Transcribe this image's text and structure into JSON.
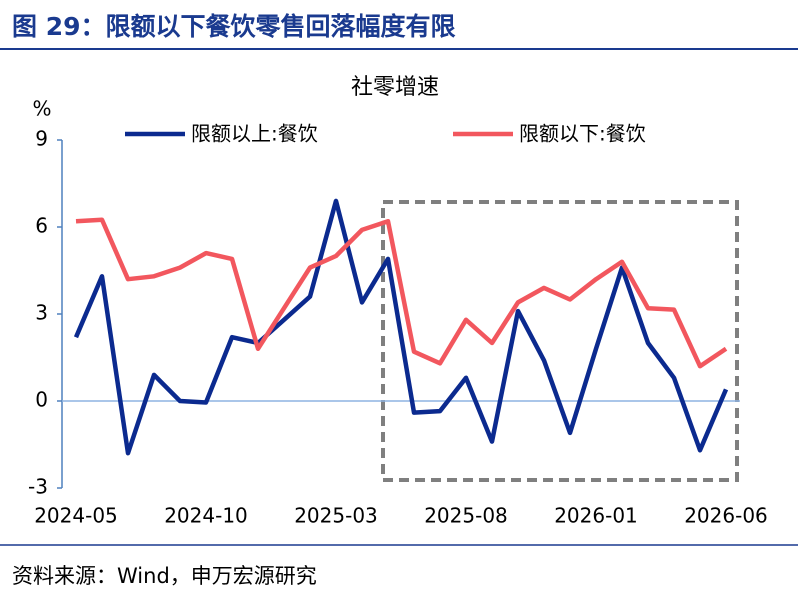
{
  "header": {
    "title": "图 29：限额以下餐饮零售回落幅度有限"
  },
  "chart_data": {
    "type": "line",
    "title": "社零增速",
    "y_label": "%",
    "categories": [
      "2024-05",
      null,
      null,
      null,
      null,
      "2024-10",
      null,
      null,
      null,
      null,
      "2025-03",
      null,
      null,
      null,
      null,
      "2025-08",
      null,
      null,
      null,
      null,
      "2026-01",
      null,
      null,
      null,
      null,
      "2026-06"
    ],
    "series": [
      {
        "name": "限额以上:餐饮",
        "color": "#0b2a8f",
        "values": [
          2.2,
          4.3,
          -1.8,
          0.9,
          0.0,
          -0.05,
          2.2,
          2.0,
          2.8,
          3.6,
          6.9,
          3.4,
          4.9,
          -0.4,
          -0.35,
          0.8,
          -1.4,
          3.1,
          1.4,
          -1.1,
          1.8,
          4.6,
          2.0,
          0.8,
          -1.7,
          0.4
        ]
      },
      {
        "name": "限额以下:餐饮",
        "color": "#f2575e",
        "values": [
          6.2,
          6.25,
          4.2,
          4.3,
          4.6,
          5.1,
          4.9,
          1.8,
          3.2,
          4.6,
          5.0,
          5.9,
          6.2,
          1.7,
          1.3,
          2.8,
          2.0,
          3.4,
          3.9,
          3.5,
          4.2,
          4.8,
          3.2,
          3.15,
          1.2,
          1.8
        ]
      }
    ],
    "ylim": [
      -3,
      9
    ],
    "yticks": [
      -3,
      0,
      3,
      6,
      9
    ],
    "grid": false,
    "legend": "top"
  },
  "footer": {
    "source": "资料来源：Wind，申万宏源研究"
  }
}
